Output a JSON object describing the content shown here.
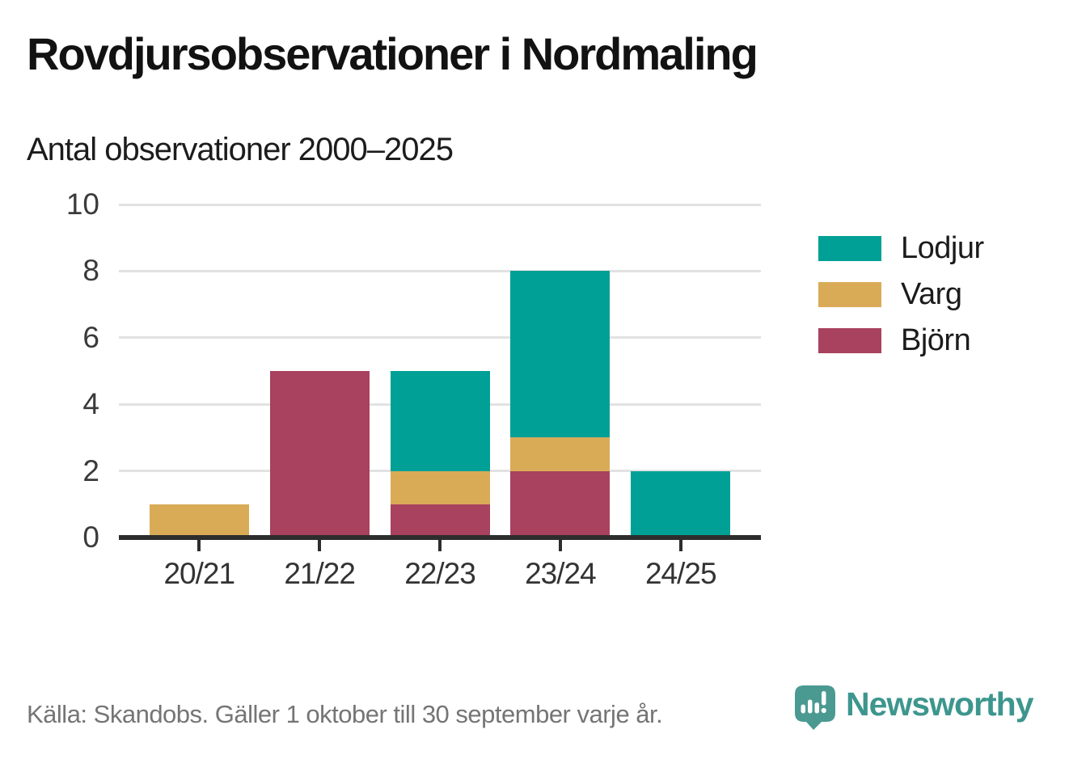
{
  "header": {
    "title": "Rovdjursobservationer i Nordmaling",
    "subtitle": "Antal observationer 2000–2025"
  },
  "chart_data": {
    "type": "bar",
    "stacked": true,
    "title": "Rovdjursobservationer i Nordmaling",
    "subtitle": "Antal observationer 2000–2025",
    "xlabel": "",
    "ylabel": "",
    "categories": [
      "20/21",
      "21/22",
      "22/23",
      "23/24",
      "24/25"
    ],
    "series": [
      {
        "name": "Björn",
        "color": "#a8425e",
        "values": [
          0,
          5,
          1,
          2,
          0
        ]
      },
      {
        "name": "Varg",
        "color": "#d9ab57",
        "values": [
          1,
          0,
          1,
          1,
          0
        ]
      },
      {
        "name": "Lodjur",
        "color": "#00a096",
        "values": [
          0,
          0,
          3,
          5,
          2
        ]
      }
    ],
    "totals": [
      1,
      5,
      5,
      8,
      2
    ],
    "legend": [
      {
        "label": "Lodjur",
        "color": "#00a096"
      },
      {
        "label": "Varg",
        "color": "#d9ab57"
      },
      {
        "label": "Björn",
        "color": "#a8425e"
      }
    ],
    "legend_position": "right",
    "grid": true,
    "gridline_color": "#e2e2e2",
    "axis_color": "#2d2d2d",
    "y_ticks": [
      0,
      2,
      4,
      6,
      8,
      10
    ],
    "ylim": [
      0,
      10
    ]
  },
  "footer": {
    "source": "Källa: Skandobs. Gäller 1 oktober till 30 september varje år.",
    "brand": "Newsworthy",
    "brand_color": "#3d968e"
  }
}
